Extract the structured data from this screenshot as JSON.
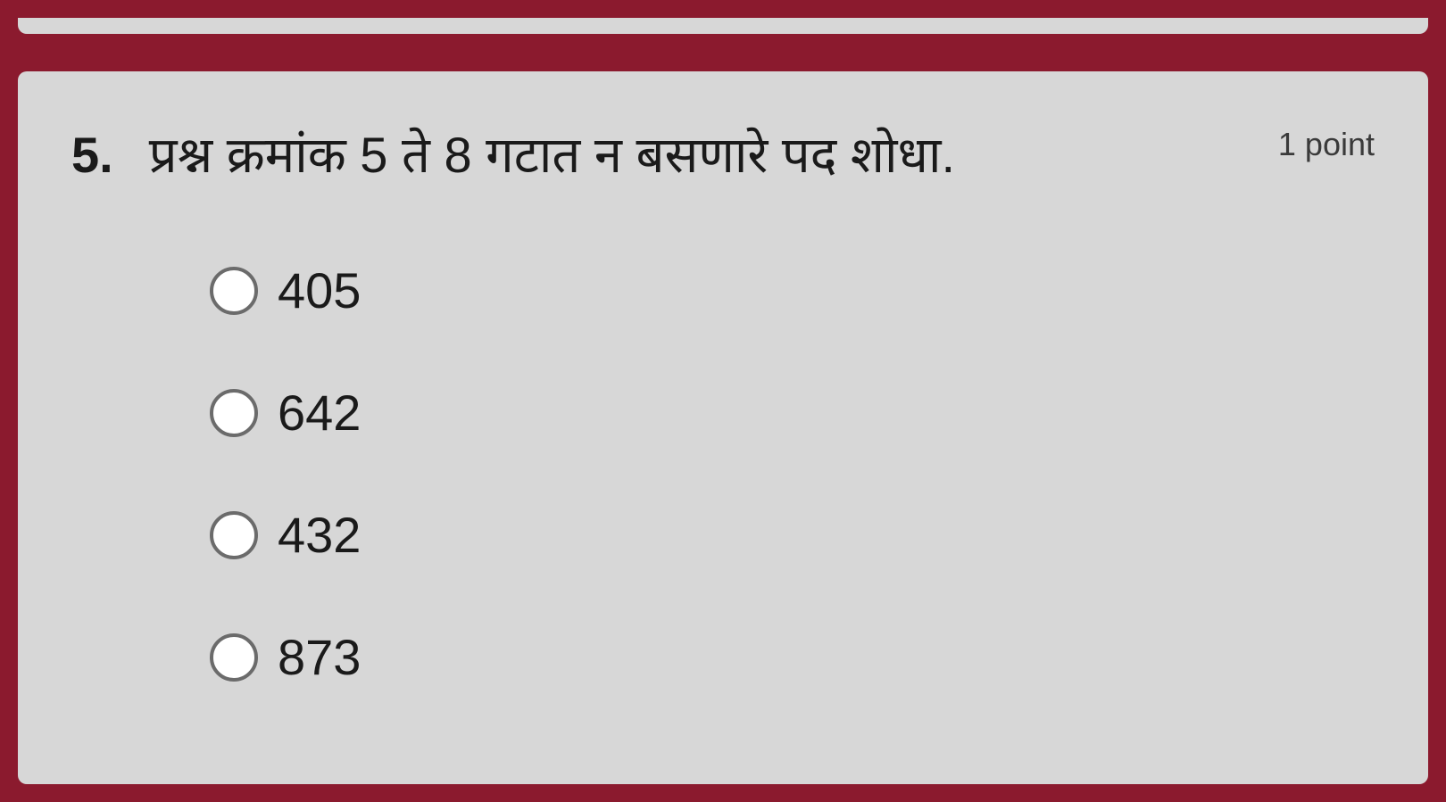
{
  "theme": {
    "outer_bg": "#8b1a2e",
    "card_bg": "#d7d7d7",
    "text_color": "#1a1a1a",
    "points_color": "#3a3a3a",
    "radio_border": "#6b6b6b",
    "radio_fill": "#ffffff"
  },
  "question": {
    "number": "5.",
    "text": "प्रश्न क्रमांक 5 ते 8 गटात न बसणारे पद शोधा.",
    "points_label": "1 point",
    "number_fontsize": 56,
    "text_fontsize": 56,
    "points_fontsize": 36
  },
  "options": [
    {
      "label": "405",
      "selected": false
    },
    {
      "label": "642",
      "selected": false
    },
    {
      "label": "432",
      "selected": false
    },
    {
      "label": "873",
      "selected": false
    }
  ],
  "option_fontsize": 56,
  "radio_size": 54
}
